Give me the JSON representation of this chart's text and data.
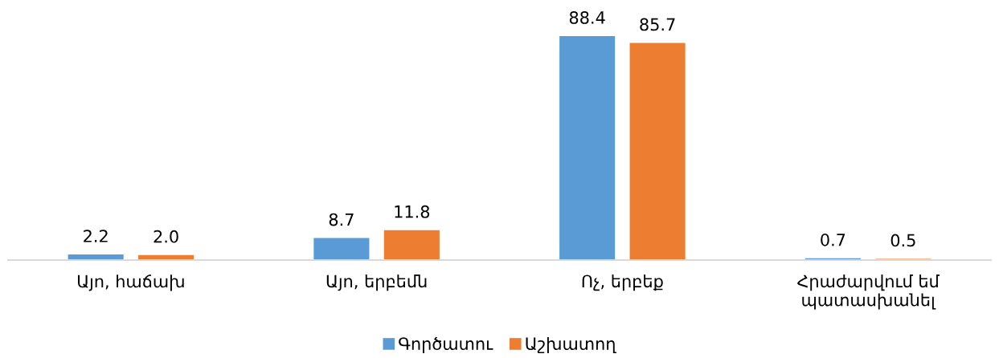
{
  "chart_data": {
    "type": "bar",
    "categories": [
      "Այո, հաճախ",
      "Այո, երբեմն",
      "Ոչ, երբեք",
      "Հրաժարվում եմ\nպատասխանել"
    ],
    "series": [
      {
        "name": "Գործատու",
        "color": "#5b9bd5",
        "values": [
          2.2,
          8.7,
          88.4,
          0.7
        ],
        "value_labels": [
          "2.2",
          "8.7",
          "88.4",
          "0.7"
        ]
      },
      {
        "name": "Աշխատող",
        "color": "#ed7d31",
        "values": [
          2.0,
          11.8,
          85.7,
          0.5
        ],
        "value_labels": [
          "2.0",
          "11.8",
          "85.7",
          "0.5"
        ]
      }
    ],
    "tick_labels": "x",
    "legend": "bottom"
  }
}
